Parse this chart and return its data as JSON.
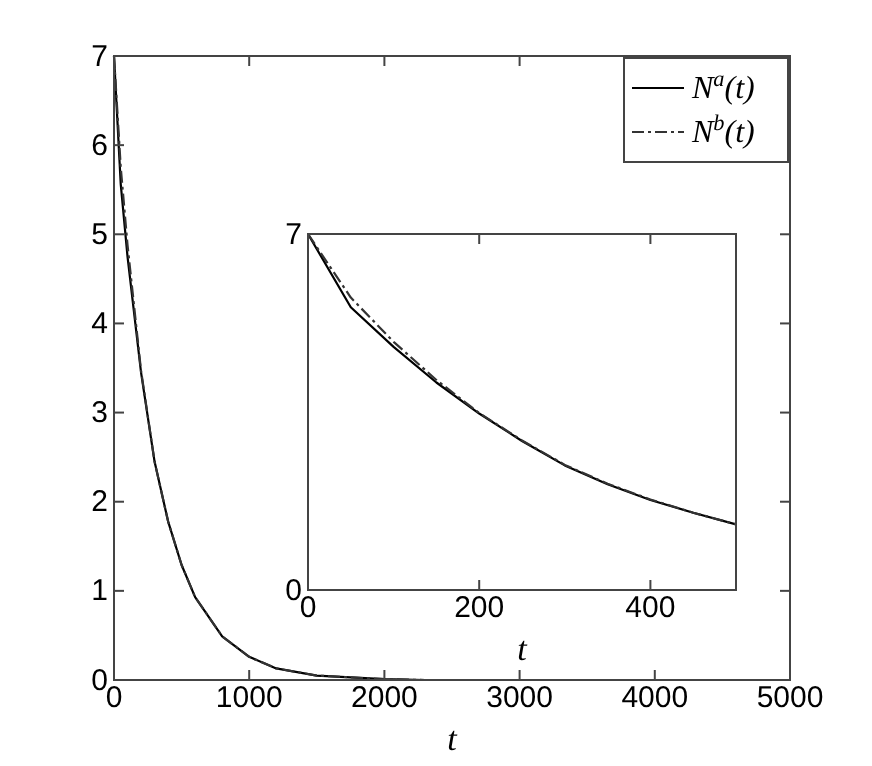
{
  "chart_data": [
    {
      "type": "line",
      "xlabel": "t",
      "xlim": [
        0,
        5000
      ],
      "ylim": [
        0,
        7
      ],
      "xticks": [
        0,
        1000,
        2000,
        3000,
        4000,
        5000
      ],
      "yticks": [
        0,
        1,
        2,
        3,
        4,
        5,
        6,
        7
      ],
      "grid": false,
      "legend": "top right",
      "series": [
        {
          "name": "N$^{a}$(t)",
          "color": "#000000",
          "line_style": "solid",
          "x": [
            0,
            50,
            100,
            200,
            300,
            400,
            500,
            600,
            800,
            1000,
            1200,
            1500,
            2000,
            2300
          ],
          "values": [
            7,
            5.56,
            4.75,
            3.45,
            2.45,
            1.78,
            1.29,
            0.93,
            0.49,
            0.26,
            0.13,
            0.05,
            0.01,
            0
          ]
        },
        {
          "name": "N$^{b}$(t)",
          "color": "#333333",
          "line_style": "dashed",
          "x": [
            0,
            50,
            100,
            200,
            300,
            400,
            500,
            600,
            800,
            1000,
            1200,
            1500,
            2000,
            2300
          ],
          "values": [
            7,
            5.75,
            4.88,
            3.47,
            2.45,
            1.78,
            1.29,
            0.93,
            0.49,
            0.26,
            0.13,
            0.05,
            0.01,
            0
          ]
        }
      ]
    },
    {
      "type": "line",
      "xlabel": "t",
      "xlim": [
        0,
        500
      ],
      "ylim": [
        0,
        7
      ],
      "xticks": [
        0,
        200,
        400
      ],
      "yticks": [
        0,
        7
      ],
      "grid": false,
      "series": [
        {
          "color": "#000000",
          "line_style": "solid",
          "x": [
            0,
            50,
            100,
            150,
            200,
            250,
            300,
            350,
            400,
            450,
            500
          ],
          "values": [
            7,
            5.56,
            4.78,
            4.08,
            3.47,
            2.93,
            2.45,
            2.08,
            1.77,
            1.52,
            1.29
          ]
        },
        {
          "color": "#333333",
          "line_style": "dashed",
          "x": [
            0,
            50,
            100,
            150,
            200,
            250,
            300,
            350,
            400,
            450,
            500
          ],
          "values": [
            7,
            5.75,
            4.88,
            4.13,
            3.48,
            2.94,
            2.46,
            2.09,
            1.78,
            1.52,
            1.29
          ]
        }
      ]
    }
  ]
}
